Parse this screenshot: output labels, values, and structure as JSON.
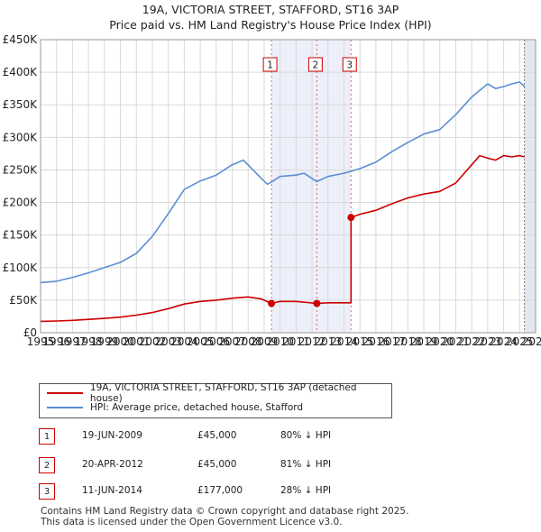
{
  "title": "19A, VICTORIA STREET, STAFFORD, ST16 3AP",
  "subtitle": "Price paid vs. HM Land Registry's House Price Index (HPI)",
  "chart_data": {
    "type": "line",
    "title": "19A, VICTORIA STREET, STAFFORD, ST16 3AP",
    "subtitle": "Price paid vs. HM Land Registry's House Price Index (HPI)",
    "xlim": [
      1995,
      2026
    ],
    "ylim": [
      0,
      450000
    ],
    "x_ticks": [
      1995,
      1996,
      1997,
      1998,
      1999,
      2000,
      2001,
      2002,
      2003,
      2004,
      2005,
      2006,
      2007,
      2008,
      2009,
      2010,
      2011,
      2012,
      2013,
      2014,
      2015,
      2016,
      2017,
      2018,
      2019,
      2020,
      2021,
      2022,
      2023,
      2024,
      2025,
      2026
    ],
    "y_ticks": [
      {
        "value": 0,
        "label": "£0"
      },
      {
        "value": 50000,
        "label": "£50K"
      },
      {
        "value": 100000,
        "label": "£100K"
      },
      {
        "value": 150000,
        "label": "£150K"
      },
      {
        "value": 200000,
        "label": "£200K"
      },
      {
        "value": 250000,
        "label": "£250K"
      },
      {
        "value": 300000,
        "label": "£300K"
      },
      {
        "value": 350000,
        "label": "£350K"
      },
      {
        "value": 400000,
        "label": "£400K"
      },
      {
        "value": 450000,
        "label": "£450K"
      }
    ],
    "grid": true,
    "series": [
      {
        "name": "19A, VICTORIA STREET, STAFFORD, ST16 3AP (detached house)",
        "color": "#cc0000",
        "points": [
          [
            1995,
            17500
          ],
          [
            1996,
            18000
          ],
          [
            1997,
            19000
          ],
          [
            1998,
            20500
          ],
          [
            1999,
            22000
          ],
          [
            2000,
            24000
          ],
          [
            2001,
            27000
          ],
          [
            2002,
            31000
          ],
          [
            2003,
            37000
          ],
          [
            2004,
            44000
          ],
          [
            2005,
            48000
          ],
          [
            2006,
            50000
          ],
          [
            2007,
            53000
          ],
          [
            2008,
            55000
          ],
          [
            2008.8,
            52000
          ],
          [
            2009.46,
            45000
          ],
          [
            2010,
            48000
          ],
          [
            2011,
            48000
          ],
          [
            2012.3,
            45000
          ],
          [
            2013,
            46000
          ],
          [
            2014.1,
            46000
          ],
          [
            2014.44,
            46000
          ],
          [
            2014.44,
            177000
          ],
          [
            2015,
            182000
          ],
          [
            2016,
            188000
          ],
          [
            2017,
            198000
          ],
          [
            2018,
            207000
          ],
          [
            2019,
            213000
          ],
          [
            2020,
            217000
          ],
          [
            2021,
            230000
          ],
          [
            2022,
            258000
          ],
          [
            2022.5,
            272000
          ],
          [
            2023,
            268000
          ],
          [
            2023.5,
            265000
          ],
          [
            2024,
            272000
          ],
          [
            2024.5,
            270000
          ],
          [
            2025,
            272000
          ],
          [
            2025.3,
            270000
          ]
        ]
      },
      {
        "name": "HPI: Average price, detached house, Stafford",
        "color": "#5b8fd4",
        "points": [
          [
            1995,
            77000
          ],
          [
            1996,
            79000
          ],
          [
            1997,
            85000
          ],
          [
            1998,
            92000
          ],
          [
            1999,
            100000
          ],
          [
            2000,
            108000
          ],
          [
            2001,
            122000
          ],
          [
            2002,
            148000
          ],
          [
            2003,
            183000
          ],
          [
            2004,
            220000
          ],
          [
            2005,
            233000
          ],
          [
            2006,
            242000
          ],
          [
            2007,
            258000
          ],
          [
            2007.7,
            265000
          ],
          [
            2008.5,
            245000
          ],
          [
            2009.2,
            228000
          ],
          [
            2009.5,
            232000
          ],
          [
            2010,
            240000
          ],
          [
            2011,
            242000
          ],
          [
            2011.5,
            245000
          ],
          [
            2012.3,
            232000
          ],
          [
            2013,
            240000
          ],
          [
            2014,
            245000
          ],
          [
            2015,
            252000
          ],
          [
            2016,
            262000
          ],
          [
            2017,
            278000
          ],
          [
            2018,
            292000
          ],
          [
            2019,
            305000
          ],
          [
            2020,
            312000
          ],
          [
            2021,
            335000
          ],
          [
            2022,
            362000
          ],
          [
            2022.5,
            372000
          ],
          [
            2023,
            382000
          ],
          [
            2023.5,
            375000
          ],
          [
            2024,
            378000
          ],
          [
            2024.5,
            382000
          ],
          [
            2025,
            385000
          ],
          [
            2025.3,
            378000
          ]
        ]
      }
    ],
    "sales": [
      {
        "label": "1",
        "date": "19-JUN-2009",
        "x": 2009.46,
        "price": 45000
      },
      {
        "label": "2",
        "date": "20-APR-2012",
        "x": 2012.3,
        "price": 45000
      },
      {
        "label": "3",
        "date": "11-JUN-2014",
        "x": 2014.44,
        "price": 177000
      }
    ],
    "shaded_ranges": [
      [
        2009.46,
        2014.44
      ],
      [
        2025.3,
        2026
      ]
    ]
  },
  "legend": {
    "items": [
      {
        "label": "19A, VICTORIA STREET, STAFFORD, ST16 3AP (detached house)",
        "color": "#cc0000"
      },
      {
        "label": "HPI: Average price, detached house, Stafford",
        "color": "#5b8fd4"
      }
    ]
  },
  "sales_table": [
    {
      "num": "1",
      "date": "19-JUN-2009",
      "price": "£45,000",
      "hpi": "80% ↓ HPI"
    },
    {
      "num": "2",
      "date": "20-APR-2012",
      "price": "£45,000",
      "hpi": "81% ↓ HPI"
    },
    {
      "num": "3",
      "date": "11-JUN-2014",
      "price": "£177,000",
      "hpi": "28% ↓ HPI"
    }
  ],
  "footer": {
    "line1": "Contains HM Land Registry data © Crown copyright and database right 2025.",
    "line2": "This data is licensed under the Open Government Licence v3.0."
  }
}
